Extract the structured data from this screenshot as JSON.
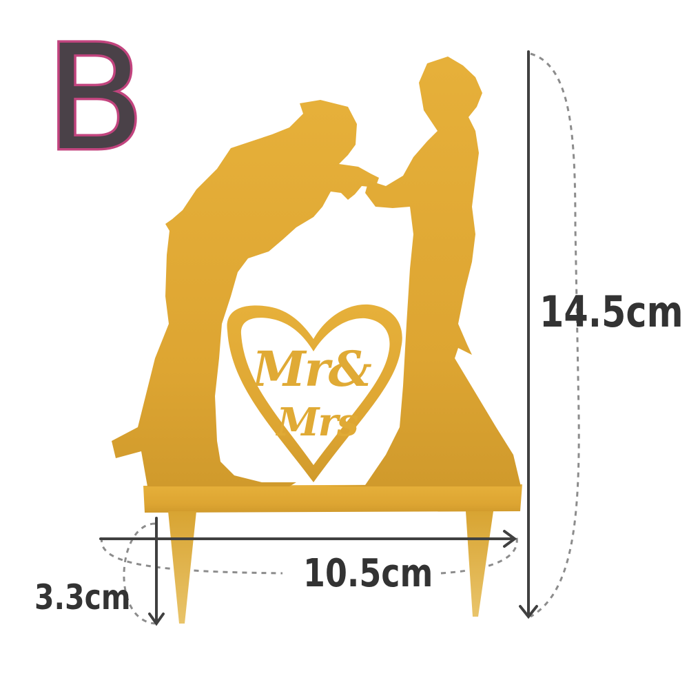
{
  "variant": {
    "letter": "B"
  },
  "product": {
    "name_motto": {
      "line1": "Mr&",
      "line2": "Mrs"
    },
    "color": "#e0aa35"
  },
  "dimensions": {
    "height_label": "14.5cm",
    "width_label": "10.5cm",
    "stake_label": "3.3cm"
  },
  "colors": {
    "letter_fill": "#4a4148",
    "letter_outline": "#c2447e",
    "dimension_text": "#333333",
    "arrow": "#404040",
    "dashed_guide": "#8c8c8c"
  }
}
